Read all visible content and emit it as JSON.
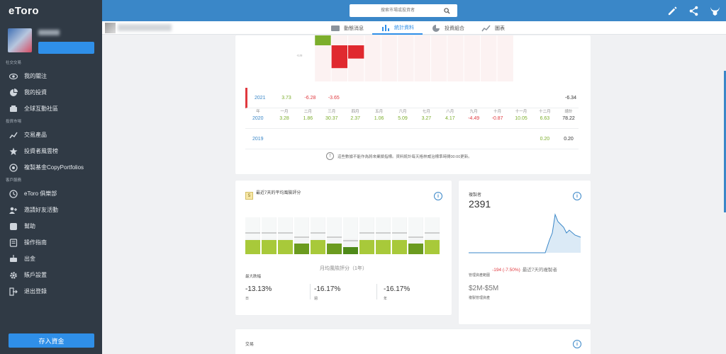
{
  "brand": {
    "logo_text": "eToro",
    "accent": "#3a87c8",
    "sidebar_bg": "#303a45"
  },
  "search": {
    "placeholder": "搜索市場或投資者"
  },
  "sidebar": {
    "sections": [
      {
        "title": "社交交易",
        "items": [
          {
            "icon": "eye-icon",
            "label": "我的關注"
          },
          {
            "icon": "pie-icon",
            "label": "我的投資"
          },
          {
            "icon": "feed-icon",
            "label": "全球互動社區"
          }
        ]
      },
      {
        "title": "投資市場",
        "items": [
          {
            "icon": "trend-icon",
            "label": "交易產品"
          },
          {
            "icon": "star-icon",
            "label": "投資者風雲榜"
          },
          {
            "icon": "copyportfolio-icon",
            "label": "複製基金CopyPortfolios"
          }
        ]
      },
      {
        "title": "客戶服務",
        "items": [
          {
            "icon": "club-icon",
            "label": "eToro 俱樂部"
          },
          {
            "icon": "invite-icon",
            "label": "邀請好友活動"
          },
          {
            "icon": "help-icon",
            "label": "幫助"
          },
          {
            "icon": "guide-icon",
            "label": "操作指南"
          },
          {
            "icon": "withdraw-icon",
            "label": "出金"
          },
          {
            "icon": "settings-icon",
            "label": "賬戶設置"
          },
          {
            "icon": "logout-icon",
            "label": "退出登錄"
          }
        ]
      }
    ],
    "deposit_label": "存入資金"
  },
  "tabs": [
    {
      "icon": "news-icon",
      "label": "動態消息",
      "active": false
    },
    {
      "icon": "stats-icon",
      "label": "統計資料",
      "active": true
    },
    {
      "icon": "portfolio-icon",
      "label": "投資組合",
      "active": false
    },
    {
      "icon": "chart-icon",
      "label": "圖表",
      "active": false
    }
  ],
  "performance": {
    "axis_min_label": "-6.28",
    "year_header": "年",
    "months": [
      "一月",
      "二月",
      "三月",
      "四月",
      "五月",
      "六月",
      "七月",
      "八月",
      "九月",
      "十月",
      "十一月",
      "十二月"
    ],
    "total_header": "總計",
    "rows": [
      {
        "year": "2021",
        "values": [
          "3.73",
          "-6.28",
          "-3.65",
          "",
          "",
          "",
          "",
          "",
          "",
          "",
          "",
          ""
        ],
        "total": "-6.34",
        "selected": true
      },
      {
        "year": "2020",
        "values": [
          "3.28",
          "1.86",
          "30.37",
          "2.37",
          "1.06",
          "5.09",
          "3.27",
          "4.17",
          "-4.49",
          "-0.87",
          "10.05",
          "6.63"
        ],
        "total": "78.22",
        "selected": false
      },
      {
        "year": "2019",
        "values": [
          "",
          "",
          "",
          "",
          "",
          "",
          "",
          "",
          "",
          "",
          "",
          "0.20"
        ],
        "total": "0.20",
        "selected": false
      }
    ],
    "note": "這些數據不能作為將來業績指標。資料統計每天格林威治標準時間00:00更新。"
  },
  "chart_data": {
    "type": "bar",
    "categories": [
      "一月",
      "二月",
      "三月",
      "四月",
      "五月",
      "六月",
      "七月",
      "八月",
      "九月",
      "十月",
      "十一月",
      "十二月"
    ],
    "series": [
      {
        "values": [
          3.73,
          -6.28,
          -3.65,
          null,
          null,
          null,
          null,
          null,
          null,
          null,
          null,
          null
        ]
      }
    ]
  },
  "risk": {
    "badge": "5",
    "title": "最近7天的平均風險評分",
    "levels": [
      5,
      5,
      5,
      4,
      5,
      4,
      3,
      5,
      5,
      5,
      4,
      5
    ],
    "caption": "月均風險評分（1年）",
    "max_drawdown_label": "最大跌幅",
    "drawdowns": [
      {
        "value": "-13.13%",
        "period": "日"
      },
      {
        "value": "-16.17%",
        "period": "週"
      },
      {
        "value": "-16.17%",
        "period": "年"
      }
    ]
  },
  "copiers": {
    "label": "複製者",
    "count": "2391",
    "change": "-194 (-7.50%)",
    "change_text": "最近7天的複製者",
    "aum_label": "管理資產範圍",
    "aum_value": "$2M-$5M",
    "aum_sub": "複製管理資產"
  },
  "trading": {
    "label": "交易"
  }
}
